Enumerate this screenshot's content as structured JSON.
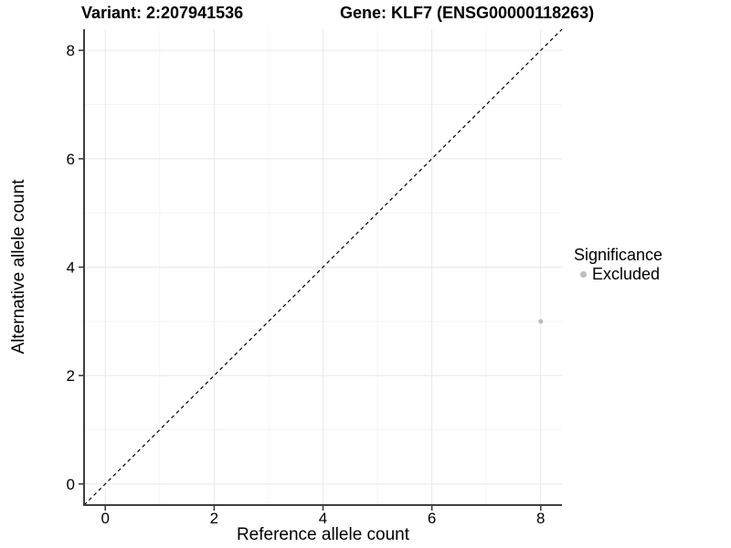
{
  "header": {
    "variant_title": "Variant: 2:207941536",
    "gene_title": "Gene: KLF7 (ENSG00000118263)"
  },
  "chart_data": {
    "type": "scatter",
    "xlabel": "Reference allele count",
    "ylabel": "Alternative allele count",
    "xlim": [
      -0.39,
      8.39
    ],
    "ylim": [
      -0.39,
      8.39
    ],
    "xticks": [
      0,
      2,
      4,
      6,
      8
    ],
    "yticks": [
      0,
      2,
      4,
      6,
      8
    ],
    "xticks_minor": [
      1,
      3,
      5,
      7
    ],
    "yticks_minor": [
      1,
      3,
      5,
      7
    ],
    "grid": true,
    "identity_line": {
      "type": "abline",
      "slope": 1,
      "intercept": 0,
      "style": "dashed",
      "color": "#000000"
    },
    "series": [
      {
        "name": "Excluded",
        "color": "#bdbdbd",
        "point_radius": 2.6,
        "points": [
          [
            8,
            3
          ]
        ]
      }
    ],
    "legend": {
      "title": "Significance",
      "position": "right",
      "entries": [
        {
          "label": "Excluded",
          "color": "#bdbdbd"
        }
      ]
    },
    "colors": {
      "grid_major": "#e8e8e8",
      "grid_minor": "#f4f4f4",
      "axis_line": "#3f3f3f",
      "tick": "#333333",
      "text": "#000000",
      "background": "#ffffff"
    }
  }
}
